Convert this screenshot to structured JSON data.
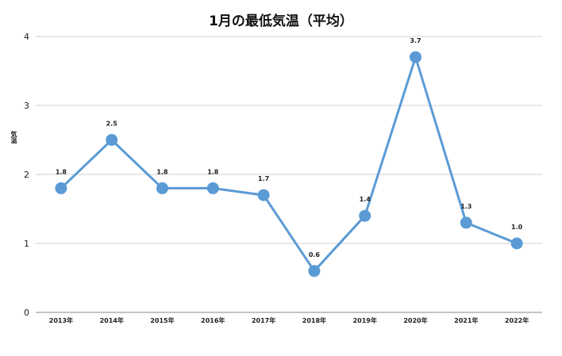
{
  "chart_data": {
    "type": "line",
    "title": "1月の最低気温（平均）",
    "ylabel": "気温",
    "xlabel": "",
    "categories": [
      "2013年",
      "2014年",
      "2015年",
      "2016年",
      "2017年",
      "2018年",
      "2019年",
      "2020年",
      "2021年",
      "2022年"
    ],
    "series": [
      {
        "values": [
          1.8,
          2.5,
          1.8,
          1.8,
          1.7,
          0.6,
          1.4,
          3.7,
          1.3,
          1.0
        ]
      }
    ],
    "data_labels": [
      "1.8",
      "2.5",
      "1.8",
      "1.8",
      "1.7",
      "0.6",
      "1.4",
      "3.7",
      "1.3",
      "1.0"
    ],
    "ylim": [
      0,
      4
    ],
    "yticks": [
      "0",
      "1",
      "2",
      "3",
      "4"
    ],
    "grid": true,
    "colors": {
      "line": "#5b9bd5",
      "grid": "#d0d0d0",
      "axis": "#888888"
    }
  }
}
